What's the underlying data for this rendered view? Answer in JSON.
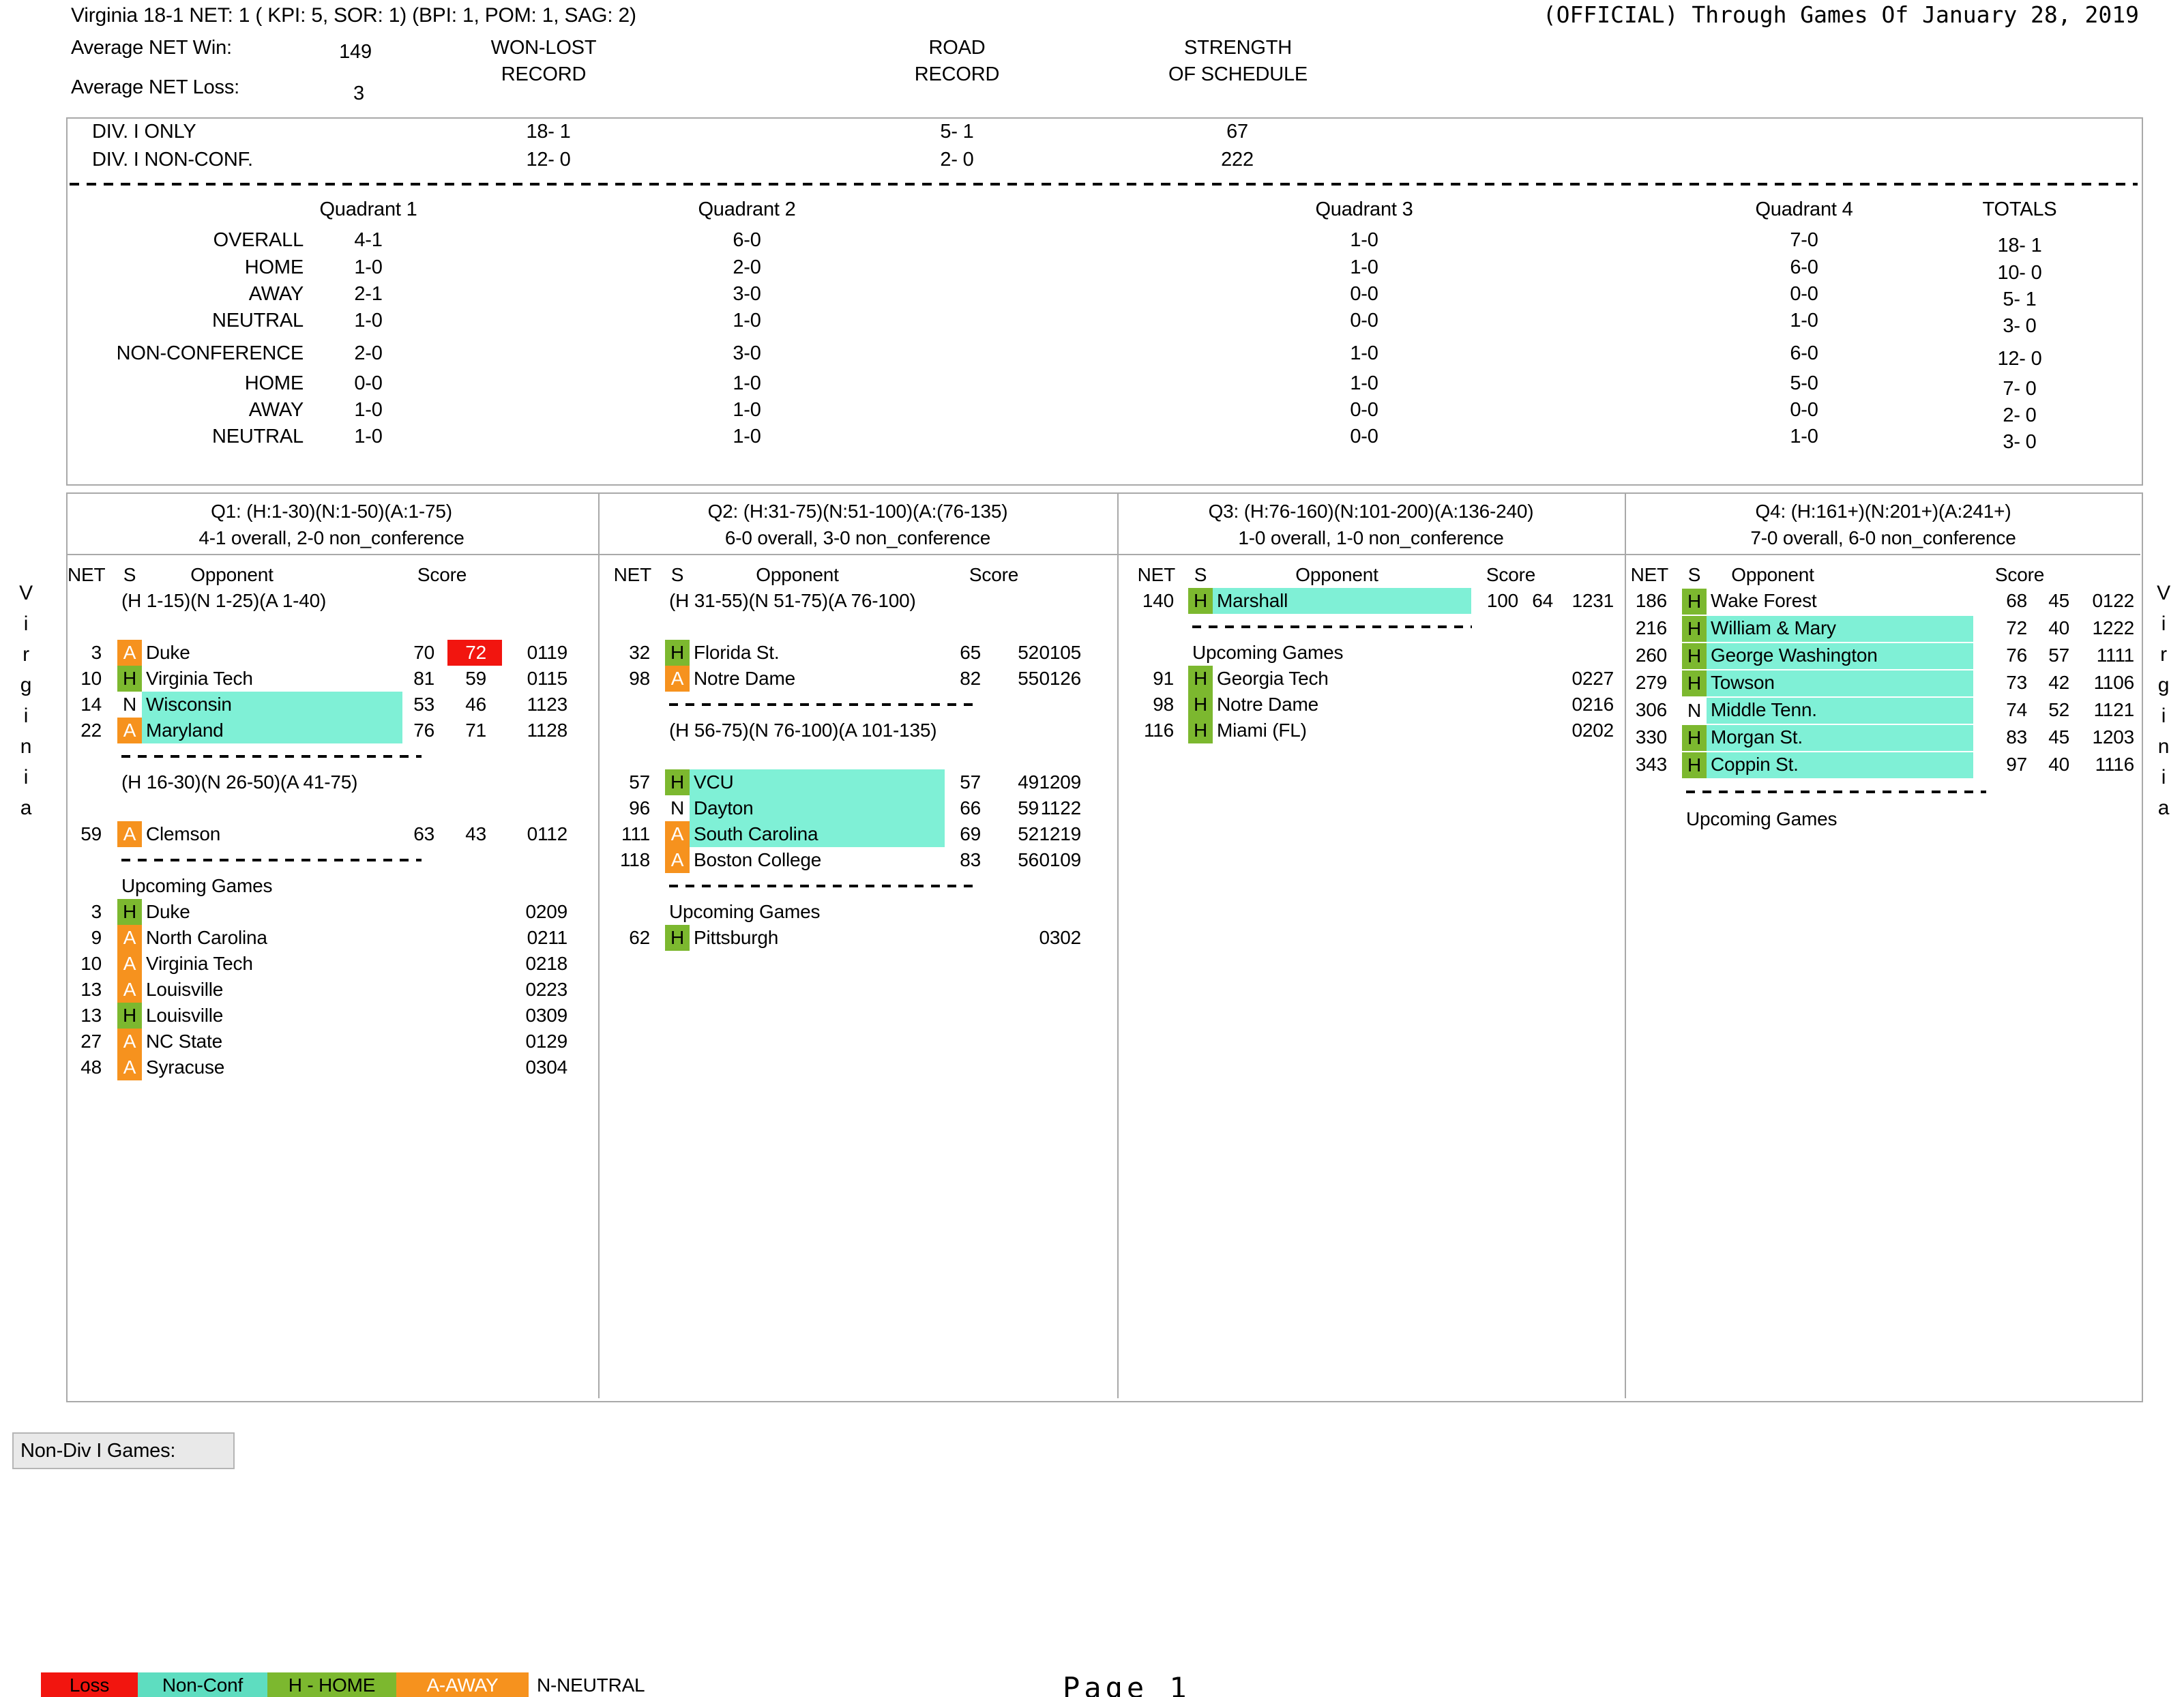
{
  "page": {
    "title_left": "Virginia 18-1  NET: 1 ( KPI: 5, SOR: 1)   (BPI: 1, POM: 1,  SAG: 2)",
    "title_right": "(OFFICIAL) Through Games Of January 28, 2019",
    "footer": "Page 1",
    "non_div_games_label": "Non-Div I Games:",
    "side_text": "Virginia"
  },
  "summary": {
    "avg_win_label": "Average NET Win:",
    "avg_win_value": "149",
    "avg_loss_label": "Average NET Loss:",
    "avg_loss_value": "3",
    "won_lost_header": [
      "WON-LOST",
      "RECORD"
    ],
    "road_header": [
      "ROAD",
      "RECORD"
    ],
    "sos_header": [
      "STRENGTH",
      "OF SCHEDULE"
    ]
  },
  "division_rows": [
    {
      "label": "DIV. I ONLY",
      "won_lost": "18- 1",
      "road": "5- 1",
      "sos": "67"
    },
    {
      "label": "DIV. I NON-CONF.",
      "won_lost": "12- 0",
      "road": "2- 0",
      "sos": "222"
    }
  ],
  "quadrant_summary": {
    "headers": [
      "Quadrant 1",
      "Quadrant 2",
      "Quadrant 3",
      "Quadrant 4",
      "TOTALS"
    ],
    "rows": [
      {
        "label": "OVERALL",
        "values": [
          "4-1",
          "6-0",
          "1-0",
          "7-0",
          "18- 1"
        ]
      },
      {
        "label": "HOME",
        "values": [
          "1-0",
          "2-0",
          "1-0",
          "6-0",
          "10- 0"
        ]
      },
      {
        "label": "AWAY",
        "values": [
          "2-1",
          "3-0",
          "0-0",
          "0-0",
          "5- 1"
        ]
      },
      {
        "label": "NEUTRAL",
        "values": [
          "1-0",
          "1-0",
          "0-0",
          "1-0",
          "3- 0"
        ]
      },
      {
        "label": "NON-CONFERENCE",
        "values": [
          "2-0",
          "3-0",
          "1-0",
          "6-0",
          "12- 0"
        ]
      },
      {
        "label": "HOME",
        "values": [
          "0-0",
          "1-0",
          "1-0",
          "5-0",
          "7- 0"
        ]
      },
      {
        "label": "AWAY",
        "values": [
          "1-0",
          "1-0",
          "0-0",
          "0-0",
          "2- 0"
        ]
      },
      {
        "label": "NEUTRAL",
        "values": [
          "1-0",
          "1-0",
          "0-0",
          "1-0",
          "3- 0"
        ]
      }
    ]
  },
  "panel_columns": {
    "net": "NET",
    "s": "S",
    "opp": "Opponent",
    "score": "Score"
  },
  "panels": [
    {
      "title": "Q1: (H:1-30)(N:1-50)(A:1-75)",
      "record": "4-1 overall, 2-0 non_conference",
      "items": [
        {
          "t": "band",
          "label": "(H 1-15)(N 1-25)(A 1-40)"
        },
        {
          "t": "blank"
        },
        {
          "t": "game",
          "net": "3",
          "s": "A",
          "opp": "Duke",
          "ts": "70",
          "os": "72",
          "date": "0119",
          "nc": false,
          "loss": true
        },
        {
          "t": "game",
          "net": "10",
          "s": "H",
          "opp": "Virginia Tech",
          "ts": "81",
          "os": "59",
          "date": "0115",
          "nc": false,
          "loss": false
        },
        {
          "t": "game",
          "net": "14",
          "s": "N",
          "opp": "Wisconsin",
          "ts": "53",
          "os": "46",
          "date": "1123",
          "nc": true,
          "loss": false
        },
        {
          "t": "game",
          "net": "22",
          "s": "A",
          "opp": "Maryland",
          "ts": "76",
          "os": "71",
          "date": "1128",
          "nc": true,
          "loss": false
        },
        {
          "t": "dash"
        },
        {
          "t": "band",
          "label": "(H 16-30)(N 26-50)(A 41-75)"
        },
        {
          "t": "blank"
        },
        {
          "t": "game",
          "net": "59",
          "s": "A",
          "opp": "Clemson",
          "ts": "63",
          "os": "43",
          "date": "0112",
          "nc": false,
          "loss": false
        },
        {
          "t": "dash"
        },
        {
          "t": "head",
          "label": "Upcoming Games"
        },
        {
          "t": "up",
          "net": "3",
          "s": "H",
          "opp": "Duke",
          "date": "0209"
        },
        {
          "t": "up",
          "net": "9",
          "s": "A",
          "opp": "North Carolina",
          "date": "0211"
        },
        {
          "t": "up",
          "net": "10",
          "s": "A",
          "opp": "Virginia Tech",
          "date": "0218"
        },
        {
          "t": "up",
          "net": "13",
          "s": "A",
          "opp": "Louisville",
          "date": "0223"
        },
        {
          "t": "up",
          "net": "13",
          "s": "H",
          "opp": "Louisville",
          "date": "0309"
        },
        {
          "t": "up",
          "net": "27",
          "s": "A",
          "opp": "NC State",
          "date": "0129"
        },
        {
          "t": "up",
          "net": "48",
          "s": "A",
          "opp": "Syracuse",
          "date": "0304"
        }
      ]
    },
    {
      "title": "Q2: (H:31-75)(N:51-100)(A:(76-135)",
      "record": "6-0 overall, 3-0 non_conference",
      "items": [
        {
          "t": "band",
          "label": "(H 31-55)(N 51-75)(A 76-100)"
        },
        {
          "t": "blank"
        },
        {
          "t": "game",
          "net": "32",
          "s": "H",
          "opp": "Florida St.",
          "ts": "65",
          "os": "52",
          "date": "0105",
          "nc": false,
          "loss": false
        },
        {
          "t": "game",
          "net": "98",
          "s": "A",
          "opp": "Notre Dame",
          "ts": "82",
          "os": "55",
          "date": "0126",
          "nc": false,
          "loss": false
        },
        {
          "t": "dash"
        },
        {
          "t": "band",
          "label": "(H 56-75)(N 76-100)(A 101-135)"
        },
        {
          "t": "blank"
        },
        {
          "t": "game",
          "net": "57",
          "s": "H",
          "opp": "VCU",
          "ts": "57",
          "os": "49",
          "date": "1209",
          "nc": true,
          "loss": false
        },
        {
          "t": "game",
          "net": "96",
          "s": "N",
          "opp": "Dayton",
          "ts": "66",
          "os": "59",
          "date": "1122",
          "nc": true,
          "loss": false
        },
        {
          "t": "game",
          "net": "111",
          "s": "A",
          "opp": "South Carolina",
          "ts": "69",
          "os": "52",
          "date": "1219",
          "nc": true,
          "loss": false
        },
        {
          "t": "game",
          "net": "118",
          "s": "A",
          "opp": "Boston College",
          "ts": "83",
          "os": "56",
          "date": "0109",
          "nc": false,
          "loss": false
        },
        {
          "t": "dash"
        },
        {
          "t": "head",
          "label": "Upcoming Games"
        },
        {
          "t": "up",
          "net": "62",
          "s": "H",
          "opp": "Pittsburgh",
          "date": "0302"
        }
      ]
    },
    {
      "title": "Q3: (H:76-160)(N:101-200)(A:136-240)",
      "record": "1-0 overall, 1-0 non_conference",
      "items": [
        {
          "t": "game",
          "net": "140",
          "s": "H",
          "opp": "Marshall",
          "ts": "100",
          "os": "64",
          "date": "1231",
          "nc": true,
          "loss": false
        },
        {
          "t": "dash"
        },
        {
          "t": "head",
          "label": "Upcoming Games"
        },
        {
          "t": "up",
          "net": "91",
          "s": "H",
          "opp": "Georgia Tech",
          "date": "0227"
        },
        {
          "t": "up",
          "net": "98",
          "s": "H",
          "opp": "Notre Dame",
          "date": "0216"
        },
        {
          "t": "up",
          "net": "116",
          "s": "H",
          "opp": "Miami (FL)",
          "date": "0202"
        }
      ]
    },
    {
      "title": "Q4: (H:161+)(N:201+)(A:241+)",
      "record": "7-0 overall, 6-0 non_conference",
      "items": [
        {
          "t": "game",
          "net": "186",
          "s": "H",
          "opp": "Wake Forest",
          "ts": "68",
          "os": "45",
          "date": "0122",
          "nc": false,
          "loss": false
        },
        {
          "t": "game",
          "net": "216",
          "s": "H",
          "opp": "William & Mary",
          "ts": "72",
          "os": "40",
          "date": "1222",
          "nc": true,
          "loss": false
        },
        {
          "t": "game",
          "net": "260",
          "s": "H",
          "opp": "George Washington",
          "ts": "76",
          "os": "57",
          "date": "1111",
          "nc": true,
          "loss": false
        },
        {
          "t": "game",
          "net": "279",
          "s": "H",
          "opp": "Towson",
          "ts": "73",
          "os": "42",
          "date": "1106",
          "nc": true,
          "loss": false
        },
        {
          "t": "game",
          "net": "306",
          "s": "N",
          "opp": "Middle Tenn.",
          "ts": "74",
          "os": "52",
          "date": "1121",
          "nc": true,
          "loss": false
        },
        {
          "t": "game",
          "net": "330",
          "s": "H",
          "opp": "Morgan St.",
          "ts": "83",
          "os": "45",
          "date": "1203",
          "nc": true,
          "loss": false
        },
        {
          "t": "game",
          "net": "343",
          "s": "H",
          "opp": "Coppin St.",
          "ts": "97",
          "os": "40",
          "date": "1116",
          "nc": true,
          "loss": false
        },
        {
          "t": "dash"
        },
        {
          "t": "head",
          "label": "Upcoming Games"
        }
      ]
    }
  ],
  "legend": [
    {
      "label": "Loss",
      "swatch": "red",
      "light_text": false
    },
    {
      "label": "Non-Conf",
      "swatch": "teal_legend",
      "light_text": false
    },
    {
      "label": "H - HOME",
      "swatch": "green",
      "light_text": false
    },
    {
      "label": "A-AWAY",
      "swatch": "orange",
      "light_text": true
    },
    {
      "label": "N-NEUTRAL",
      "swatch": "none",
      "light_text": false
    }
  ],
  "colors": {
    "red": "#f2150f",
    "orange": "#f6921e",
    "green": "#7cb82f",
    "teal": "#7ff0d6",
    "teal_legend": "#5eddc0",
    "border": "#a9a9a9",
    "label_bg": "#e9e9e9"
  }
}
